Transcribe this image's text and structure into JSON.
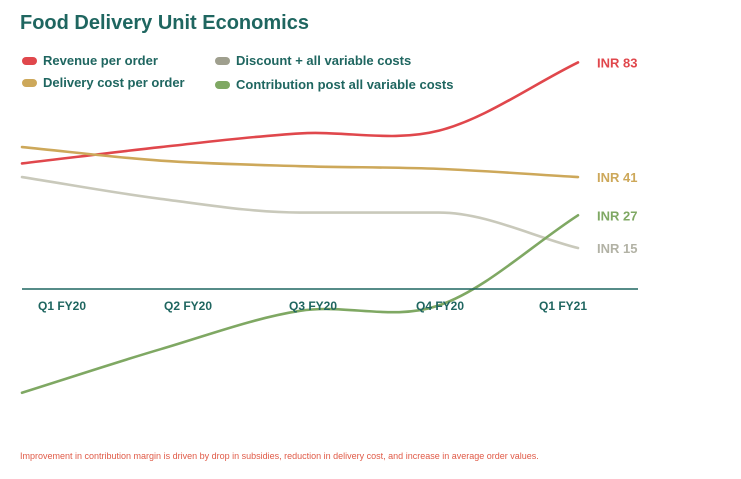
{
  "chart_data": {
    "type": "line",
    "title": "Food Delivery Unit Economics",
    "categories": [
      "Q1 FY20",
      "Q2 FY20",
      "Q3 FY20",
      "Q4 FY20",
      "Q1 FY21"
    ],
    "ylim": [
      -40,
      90
    ],
    "grid": false,
    "legend": "top-left",
    "series": [
      {
        "name": "Revenue per order",
        "color": "#e0474c",
        "values": [
          46,
          52,
          57,
          58,
          83
        ],
        "end_label": "INR 83"
      },
      {
        "name": "Delivery cost per order",
        "color": "#cda85a",
        "values": [
          52,
          47,
          45,
          44,
          41
        ],
        "end_label": "INR 41"
      },
      {
        "name": "Discount + all variable costs",
        "color": "#c9c9bb",
        "values": [
          41,
          33,
          28,
          28,
          15
        ],
        "end_label": "INR 15"
      },
      {
        "name": "Contribution post all variable costs",
        "color": "#7fa863",
        "values": [
          -38,
          -22,
          -8,
          -6,
          27
        ],
        "end_label": "INR 27"
      }
    ]
  },
  "footnote": "Improvement in contribution margin is driven by drop in subsidies, reduction in delivery cost, and increase in average order values."
}
